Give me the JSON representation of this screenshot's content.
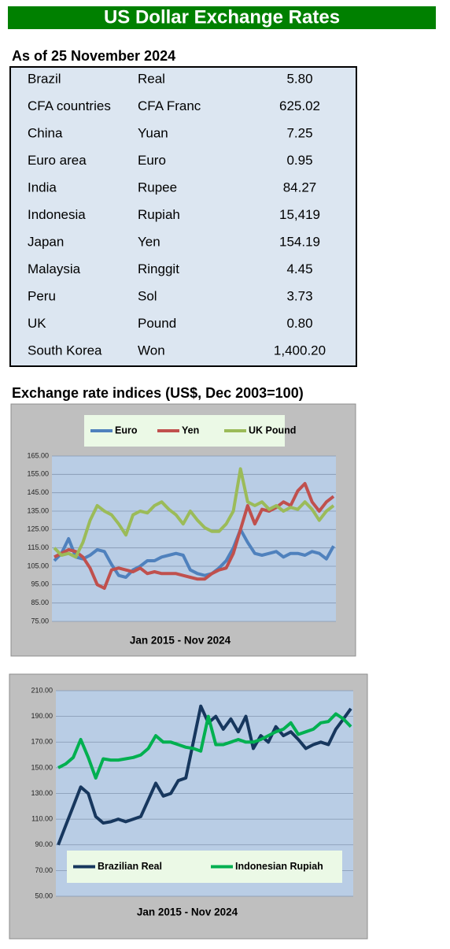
{
  "title": "US Dollar Exchange Rates",
  "table": {
    "title": "As of 25 November 2024",
    "rows": [
      [
        "Brazil",
        "Real",
        "5.80"
      ],
      [
        "CFA countries",
        "CFA Franc",
        "625.02"
      ],
      [
        "China",
        "Yuan",
        "7.25"
      ],
      [
        "Euro area",
        "Euro",
        "0.95"
      ],
      [
        "India",
        "Rupee",
        "84.27"
      ],
      [
        "Indonesia",
        "Rupiah",
        "15,419"
      ],
      [
        "Japan",
        "Yen",
        "154.19"
      ],
      [
        "Malaysia",
        "Ringgit",
        "4.45"
      ],
      [
        "Peru",
        "Sol",
        "3.73"
      ],
      [
        "UK",
        "Pound",
        "0.80"
      ],
      [
        "South Korea",
        "Won",
        "1,400.20"
      ]
    ]
  },
  "chart_data": [
    {
      "type": "line",
      "title": "Exchange rate indices (US$, Dec 2003=100)",
      "xlabel": "Jan 2015 - Nov 2024",
      "legend": "top",
      "grid": true,
      "ylim": [
        75,
        165
      ],
      "yticks": [
        {
          "value": 75,
          "label": "75.00"
        },
        {
          "value": 85,
          "label": "85.00"
        },
        {
          "value": 95,
          "label": "95.00"
        },
        {
          "value": 105,
          "label": "105.00"
        },
        {
          "value": 115,
          "label": "115.00"
        },
        {
          "value": 125,
          "label": "125.00"
        },
        {
          "value": 135,
          "label": "135.00"
        },
        {
          "value": 145,
          "label": "145.00"
        },
        {
          "value": 155,
          "label": "155.00"
        },
        {
          "value": 165,
          "label": "165.00"
        }
      ],
      "series": [
        {
          "name": "Euro",
          "color": "#4f81bd",
          "values": [
            108,
            112,
            120,
            110,
            109,
            111,
            114,
            113,
            106,
            100,
            99,
            103,
            105,
            108,
            108,
            110,
            111,
            112,
            111,
            103,
            101,
            100,
            101,
            104,
            108,
            115,
            125,
            118,
            112,
            111,
            112,
            113,
            110,
            112,
            112,
            111,
            113,
            112,
            109,
            116
          ]
        },
        {
          "name": "Yen",
          "color": "#c0504d",
          "values": [
            110,
            112,
            114,
            113,
            110,
            104,
            95,
            93,
            103,
            104,
            103,
            102,
            104,
            101,
            102,
            101,
            101,
            101,
            100,
            99,
            98,
            98,
            101,
            103,
            104,
            112,
            125,
            138,
            128,
            136,
            135,
            137,
            140,
            138,
            146,
            150,
            140,
            135,
            140,
            143
          ]
        },
        {
          "name": "UK Pound",
          "color": "#9bbb59",
          "values": [
            115,
            111,
            112,
            110,
            118,
            130,
            138,
            135,
            133,
            128,
            122,
            133,
            135,
            134,
            138,
            140,
            136,
            133,
            128,
            135,
            130,
            126,
            124,
            124,
            128,
            135,
            158,
            140,
            138,
            140,
            136,
            138,
            135,
            137,
            136,
            140,
            136,
            130,
            135,
            138
          ]
        }
      ]
    },
    {
      "type": "line",
      "xlabel": "Jan 2015 - Nov 2024",
      "legend": "bottom",
      "grid": true,
      "ylim": [
        50,
        210
      ],
      "yticks": [
        {
          "value": 50,
          "label": "50.00"
        },
        {
          "value": 70,
          "label": "70.00"
        },
        {
          "value": 90,
          "label": "90.00"
        },
        {
          "value": 110,
          "label": "110.00"
        },
        {
          "value": 130,
          "label": "130.00"
        },
        {
          "value": 150,
          "label": "150.00"
        },
        {
          "value": 170,
          "label": "170.00"
        },
        {
          "value": 190,
          "label": "190.00"
        },
        {
          "value": 210,
          "label": "210.00"
        }
      ],
      "series": [
        {
          "name": "Brazilian Real",
          "color": "#17375e",
          "values": [
            90,
            105,
            120,
            135,
            130,
            112,
            107,
            108,
            110,
            108,
            110,
            112,
            125,
            138,
            128,
            130,
            140,
            142,
            170,
            198,
            185,
            190,
            180,
            188,
            178,
            190,
            165,
            175,
            170,
            182,
            175,
            178,
            172,
            165,
            168,
            170,
            168,
            180,
            188,
            196
          ]
        },
        {
          "name": "Indonesian Rupiah",
          "color": "#00b050",
          "values": [
            150,
            153,
            158,
            172,
            158,
            142,
            157,
            156,
            156,
            157,
            158,
            160,
            165,
            175,
            170,
            170,
            168,
            166,
            165,
            163,
            190,
            168,
            168,
            170,
            172,
            170,
            170,
            172,
            175,
            178,
            180,
            185,
            176,
            178,
            180,
            185,
            186,
            192,
            188,
            182
          ]
        }
      ]
    }
  ]
}
